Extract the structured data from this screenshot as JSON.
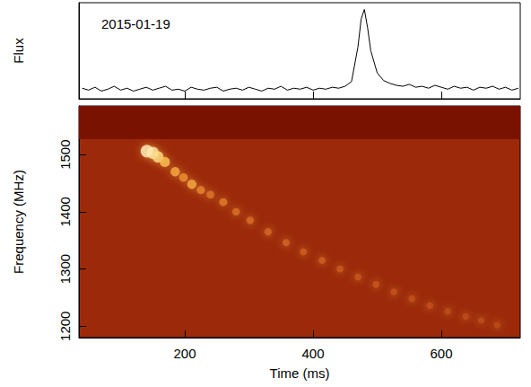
{
  "chart_data": [
    {
      "type": "line",
      "annotation": "2015-01-19",
      "ylabel": "Flux",
      "color": "#000000",
      "x": [
        40,
        50,
        60,
        70,
        80,
        90,
        100,
        110,
        120,
        130,
        140,
        150,
        160,
        170,
        180,
        190,
        200,
        210,
        220,
        230,
        240,
        250,
        260,
        270,
        280,
        290,
        300,
        310,
        320,
        330,
        340,
        350,
        360,
        370,
        380,
        390,
        400,
        410,
        420,
        430,
        440,
        450,
        460,
        470,
        475,
        480,
        485,
        490,
        500,
        510,
        520,
        530,
        540,
        550,
        560,
        570,
        580,
        590,
        600,
        610,
        620,
        630,
        640,
        650,
        660,
        670,
        680,
        690,
        700,
        710,
        720
      ],
      "values": [
        1.1,
        0.9,
        1.2,
        0.8,
        1.0,
        1.3,
        0.9,
        1.1,
        0.8,
        1.0,
        1.2,
        0.9,
        1.1,
        1.3,
        0.9,
        1.0,
        0.8,
        1.2,
        1.0,
        0.9,
        1.1,
        1.2,
        0.8,
        1.0,
        1.1,
        0.9,
        1.2,
        1.0,
        0.8,
        1.1,
        1.0,
        1.3,
        0.9,
        1.1,
        1.0,
        1.2,
        0.9,
        1.1,
        1.0,
        1.2,
        1.1,
        1.3,
        1.8,
        5.4,
        8.3,
        9.3,
        7.4,
        5.0,
        2.7,
        1.9,
        1.6,
        1.4,
        1.3,
        1.5,
        1.2,
        1.3,
        1.1,
        1.4,
        1.2,
        1.0,
        1.3,
        1.1,
        1.2,
        0.9,
        1.2,
        1.1,
        1.3,
        1.0,
        1.2,
        0.9,
        1.1
      ],
      "xlim": [
        35,
        723
      ],
      "xticks": [
        200,
        400,
        600
      ],
      "ylim": [
        0,
        10
      ],
      "tick_labels": false
    },
    {
      "type": "heatmap",
      "xlabel": "Time (ms)",
      "ylabel": "Frequency (MHz)",
      "xlim": [
        35,
        723
      ],
      "xticks": [
        200,
        400,
        600
      ],
      "ylim": [
        1180,
        1585
      ],
      "yticks": [
        1200,
        1300,
        1400,
        1500
      ],
      "cells": [
        [
          141,
          1506,
          1.0
        ],
        [
          150,
          1503,
          0.95
        ],
        [
          158,
          1496,
          0.85
        ],
        [
          169,
          1487,
          0.7
        ],
        [
          185,
          1470,
          0.6
        ],
        [
          198,
          1460,
          0.5
        ],
        [
          211,
          1448,
          0.6
        ],
        [
          225,
          1438,
          0.45
        ],
        [
          240,
          1430,
          0.4
        ],
        [
          260,
          1417,
          0.42
        ],
        [
          280,
          1400,
          0.38
        ],
        [
          302,
          1385,
          0.36
        ],
        [
          330,
          1365,
          0.34
        ],
        [
          358,
          1346,
          0.33
        ],
        [
          385,
          1330,
          0.3
        ],
        [
          414,
          1315,
          0.3
        ],
        [
          442,
          1300,
          0.28
        ],
        [
          470,
          1286,
          0.27
        ],
        [
          498,
          1273,
          0.26
        ],
        [
          526,
          1260,
          0.25
        ],
        [
          554,
          1248,
          0.24
        ],
        [
          582,
          1236,
          0.23
        ],
        [
          610,
          1226,
          0.22
        ],
        [
          638,
          1217,
          0.21
        ],
        [
          662,
          1210,
          0.2
        ],
        [
          687,
          1202,
          0.2
        ]
      ],
      "zlim": [
        0,
        1
      ],
      "mask": [
        1527,
        1585
      ]
    }
  ]
}
